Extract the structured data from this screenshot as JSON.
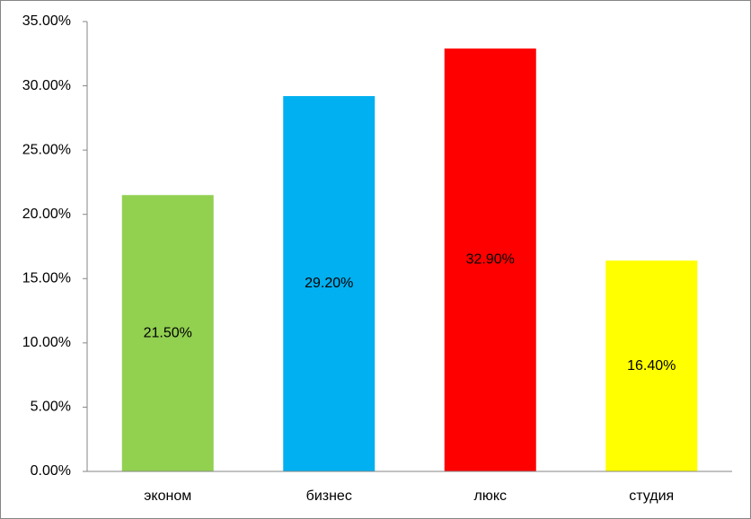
{
  "chart_data": {
    "type": "bar",
    "categories": [
      "эконом",
      "бизнес",
      "люкс",
      "студия"
    ],
    "values": [
      21.5,
      29.2,
      32.9,
      16.4
    ],
    "value_labels": [
      "21.50%",
      "29.20%",
      "32.90%",
      "16.40%"
    ],
    "colors": [
      "#92d050",
      "#00b0f0",
      "#ff0000",
      "#ffff00"
    ],
    "ylim": [
      0,
      35
    ],
    "yticks": [
      {
        "value": 0,
        "label": "0.00%"
      },
      {
        "value": 5,
        "label": "5.00%"
      },
      {
        "value": 10,
        "label": "10.00%"
      },
      {
        "value": 15,
        "label": "15.00%"
      },
      {
        "value": 20,
        "label": "20.00%"
      },
      {
        "value": 25,
        "label": "25.00%"
      },
      {
        "value": 30,
        "label": "30.00%"
      },
      {
        "value": 35,
        "label": "35.00%"
      }
    ],
    "grid": false
  }
}
